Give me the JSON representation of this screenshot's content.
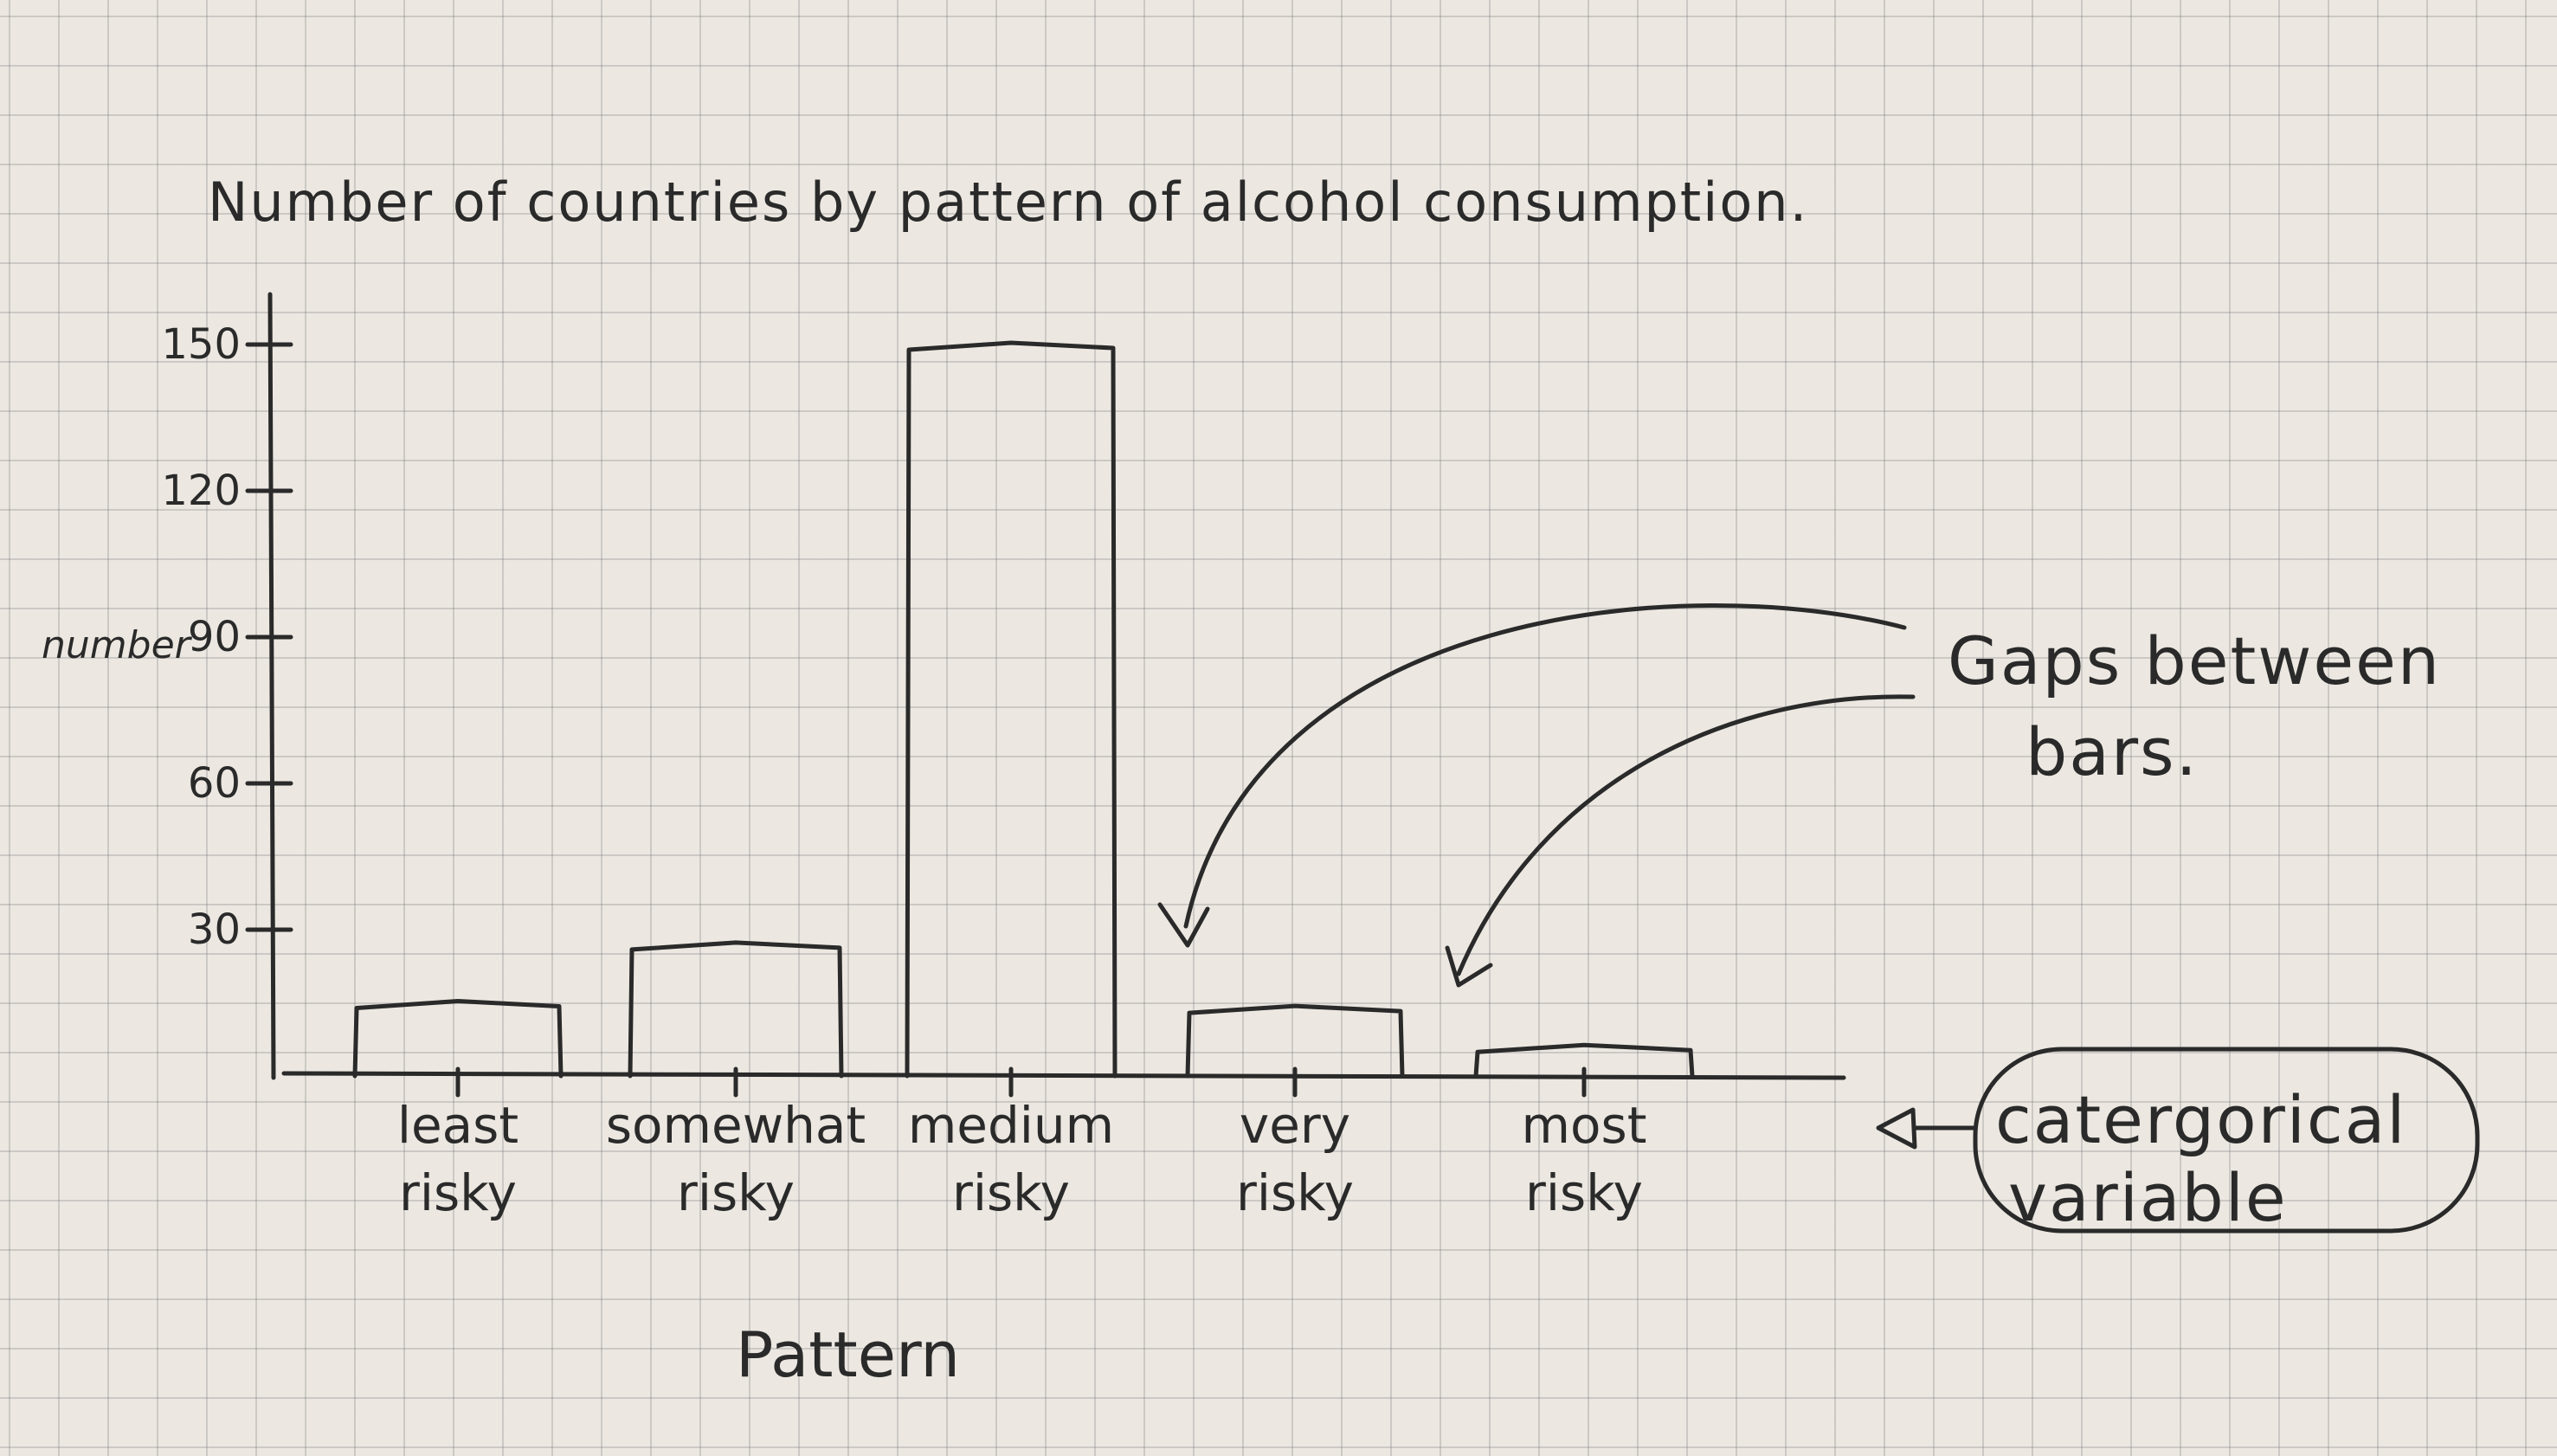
{
  "chart_data": {
    "type": "bar",
    "title": "Number of countries by pattern of alcohol consumption.",
    "xlabel": "Pattern",
    "ylabel": "number",
    "categories": [
      [
        "least",
        "risky"
      ],
      [
        "somewhat",
        "risky"
      ],
      [
        "medium",
        "risky"
      ],
      [
        "very",
        "risky"
      ],
      [
        "most",
        "risky"
      ]
    ],
    "values": [
      15,
      27,
      150,
      14,
      6
    ],
    "yticks": [
      30,
      60,
      90,
      120,
      150
    ],
    "ylim": [
      0,
      150
    ],
    "grid": true,
    "annotations": [
      {
        "id": "gaps",
        "lines": [
          "Gaps between",
          "bars."
        ]
      },
      {
        "id": "categorical",
        "lines": [
          "catergorical",
          "variable"
        ]
      }
    ]
  }
}
